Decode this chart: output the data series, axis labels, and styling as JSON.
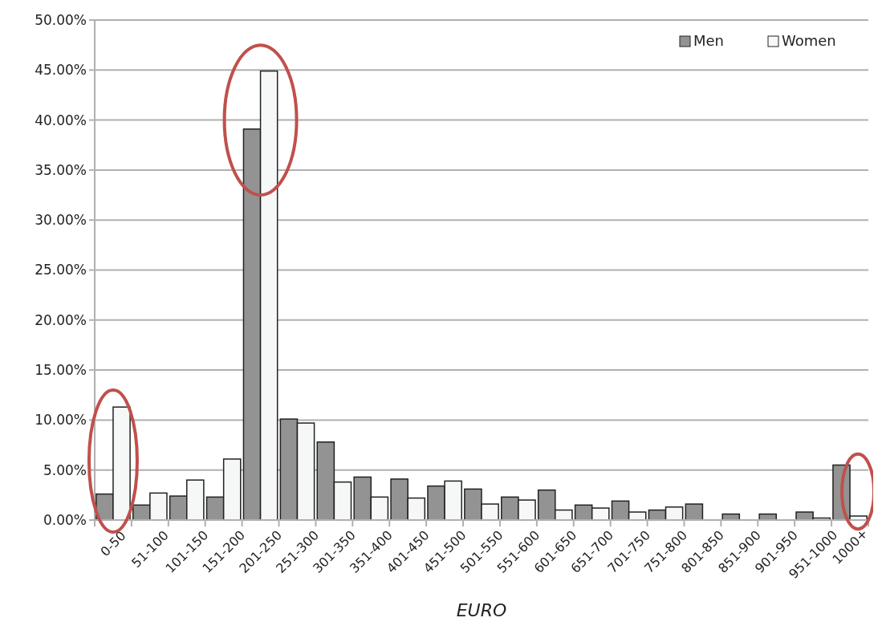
{
  "chart_data": {
    "type": "bar",
    "xlabel": "EURO",
    "categories": [
      "0-50",
      "51-100",
      "101-150",
      "151-200",
      "201-250",
      "251-300",
      "301-350",
      "351-400",
      "401-450",
      "451-500",
      "501-550",
      "551-600",
      "601-650",
      "651-700",
      "701-750",
      "751-800",
      "801-850",
      "851-900",
      "901-950",
      "951-1000",
      "1000+"
    ],
    "series": [
      {
        "name": "Men",
        "color": "#939393",
        "values": [
          2.6,
          1.5,
          2.4,
          2.3,
          39.1,
          10.1,
          7.8,
          4.3,
          4.1,
          3.4,
          3.1,
          2.3,
          3.0,
          1.5,
          1.9,
          1.0,
          1.6,
          0.6,
          0.6,
          0.8,
          5.5
        ]
      },
      {
        "name": "Women",
        "color": "#f6f8f7",
        "values": [
          11.3,
          2.7,
          4.0,
          6.1,
          44.9,
          9.7,
          3.8,
          2.3,
          2.2,
          3.9,
          1.6,
          2.0,
          1.0,
          1.2,
          0.8,
          1.3,
          0,
          0,
          0,
          0.2,
          0.4
        ]
      }
    ],
    "ylim": [
      0,
      50
    ],
    "yticks": [
      {
        "value": 0,
        "label": "0.00%"
      },
      {
        "value": 5,
        "label": "5.00%"
      },
      {
        "value": 10,
        "label": "10.00%"
      },
      {
        "value": 15,
        "label": "15.00%"
      },
      {
        "value": 20,
        "label": "20.00%"
      },
      {
        "value": 25,
        "label": "25.00%"
      },
      {
        "value": 30,
        "label": "30.00%"
      },
      {
        "value": 35,
        "label": "35.00%"
      },
      {
        "value": 40,
        "label": "40.00%"
      },
      {
        "value": 45,
        "label": "45.00%"
      },
      {
        "value": 50,
        "label": "50.00%"
      }
    ],
    "grid": "y",
    "legend": "top right"
  }
}
